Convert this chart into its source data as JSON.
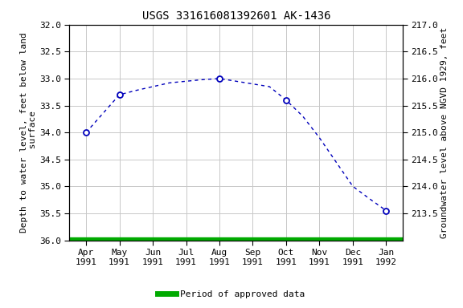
{
  "title": "USGS 331616081392601 AK-1436",
  "x_labels": [
    "Apr\n1991",
    "May\n1991",
    "Jun\n1991",
    "Jul\n1991",
    "Aug\n1991",
    "Sep\n1991",
    "Oct\n1991",
    "Nov\n1991",
    "Dec\n1991",
    "Jan\n1992"
  ],
  "x_positions": [
    0,
    1,
    2,
    3,
    4,
    5,
    6,
    7,
    8,
    9
  ],
  "data_x": [
    0,
    0.5,
    1,
    1.5,
    2,
    2.5,
    3,
    3.5,
    4,
    4.5,
    5,
    5.5,
    6,
    6.5,
    7,
    7.5,
    8,
    8.5,
    9
  ],
  "data_y_depth": [
    34.0,
    33.65,
    33.3,
    33.22,
    33.15,
    33.08,
    33.05,
    33.02,
    33.0,
    33.05,
    33.1,
    33.15,
    33.4,
    33.7,
    34.1,
    34.55,
    35.0,
    35.23,
    35.45
  ],
  "marker_x": [
    0,
    1,
    4,
    6,
    9
  ],
  "marker_y_depth": [
    34.0,
    33.3,
    33.0,
    33.4,
    35.45
  ],
  "ylim_left": [
    36.0,
    32.0
  ],
  "ylim_right": [
    213.0,
    217.0
  ],
  "ylabel_left": "Depth to water level, feet below land\n surface",
  "ylabel_right": "Groundwater level above NGVD 1929, feet",
  "yticks_left": [
    32.0,
    32.5,
    33.0,
    33.5,
    34.0,
    34.5,
    35.0,
    35.5,
    36.0
  ],
  "yticks_right": [
    213.5,
    214.0,
    214.5,
    215.0,
    215.5,
    216.0,
    216.5,
    217.0
  ],
  "line_color": "#0000bb",
  "marker_color": "#0000bb",
  "green_bar_color": "#00aa00",
  "background_color": "#ffffff",
  "grid_color": "#c8c8c8",
  "legend_label": "Period of approved data",
  "title_fontsize": 10,
  "axis_label_fontsize": 8,
  "tick_fontsize": 8
}
